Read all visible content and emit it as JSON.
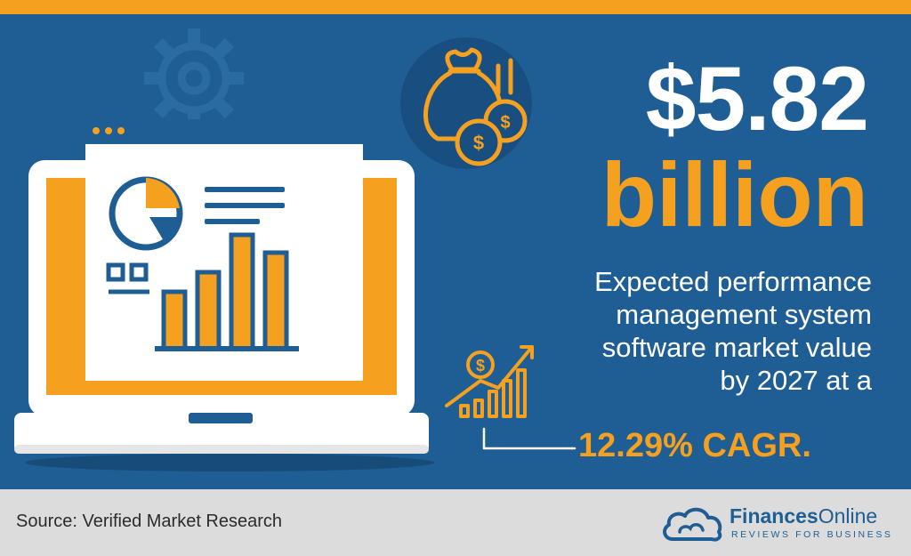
{
  "headline": {
    "amount": "$5.82",
    "unit": "billion"
  },
  "description": {
    "lines": [
      "Expected performance",
      "management system",
      "software market value",
      "by 2027 at a"
    ]
  },
  "cagr": "12.29% CAGR.",
  "footer": {
    "source": "Source: Verified Market Research",
    "brand": {
      "name_part1": "Finances",
      "name_part2": "Online",
      "tagline": "REVIEWS FOR BUSINESS"
    }
  },
  "colors": {
    "background_blue": "#1E5E94",
    "accent_orange": "#F5A01F",
    "footer_gray": "#DCDCDC"
  },
  "icons": [
    "gear-icon",
    "laptop-icon",
    "browser-window-icon",
    "pie-chart-icon",
    "bar-chart-icon",
    "money-bag-icon",
    "coins-icon",
    "growth-chart-icon",
    "cloud-logo-icon"
  ]
}
